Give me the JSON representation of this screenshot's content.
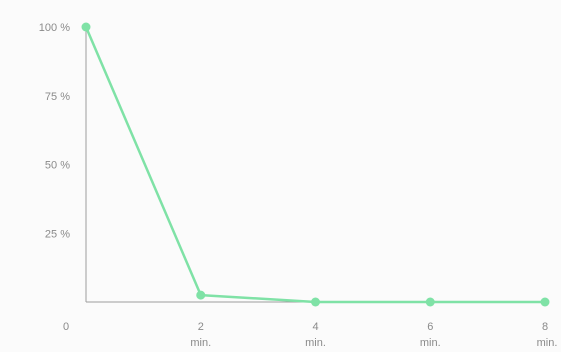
{
  "chart_data": {
    "type": "line",
    "title": "",
    "xlabel": "",
    "ylabel": "",
    "x": [
      0,
      2,
      4,
      6,
      8
    ],
    "series": [
      {
        "values": [
          100,
          2.5,
          0,
          0,
          0
        ],
        "color": "#7fe2a6"
      }
    ],
    "y_ticks": [
      {
        "value": 100,
        "label": "100 %"
      },
      {
        "value": 75,
        "label": "75 %"
      },
      {
        "value": 50,
        "label": "50 %"
      },
      {
        "value": 25,
        "label": "25 %"
      }
    ],
    "x_ticks": [
      {
        "value": 0,
        "label": "0",
        "unit": ""
      },
      {
        "value": 2,
        "label": "2",
        "unit": "min."
      },
      {
        "value": 4,
        "label": "4",
        "unit": "min."
      },
      {
        "value": 6,
        "label": "6",
        "unit": "min."
      },
      {
        "value": 8,
        "label": "8",
        "unit": "min."
      }
    ],
    "xlim": [
      0,
      8
    ],
    "ylim": [
      0,
      100
    ],
    "grid": false,
    "axis_color": "#9e9e9e",
    "line_color": "#7fe2a6",
    "background": "#fbfbfb"
  }
}
